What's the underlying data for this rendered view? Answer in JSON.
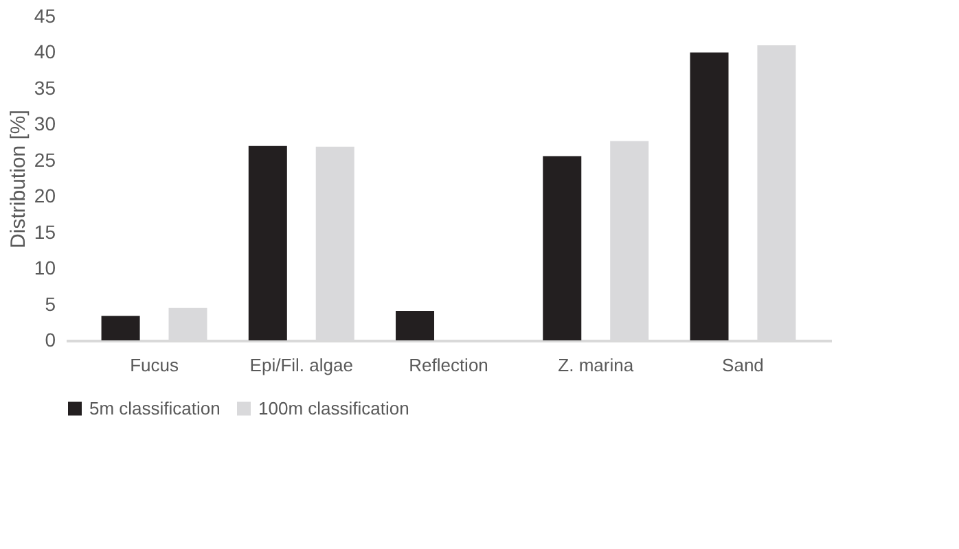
{
  "chart_data": {
    "type": "bar",
    "ylabel": "Distribution [%]",
    "categories": [
      "Fucus",
      "Epi/Fil. algae",
      "Reflection",
      "Z. marina",
      "Sand"
    ],
    "series": [
      {
        "name": "5m classification",
        "color": "#231f20",
        "values": [
          3.4,
          27.0,
          4.1,
          25.6,
          40.0
        ]
      },
      {
        "name": "100m classification",
        "color": "#d9d9db",
        "values": [
          4.5,
          26.9,
          0,
          27.7,
          41.0
        ]
      }
    ],
    "ylim": [
      0,
      45
    ],
    "yticks": [
      0,
      5,
      10,
      15,
      20,
      25,
      30,
      35,
      40,
      45
    ],
    "grid": false,
    "legend": "bottom"
  }
}
